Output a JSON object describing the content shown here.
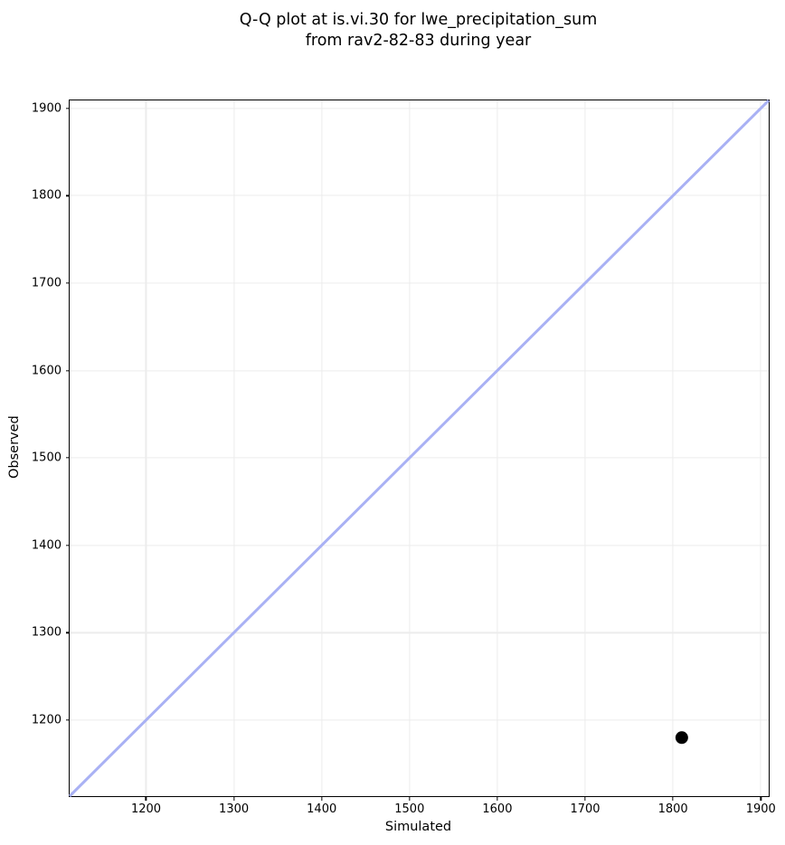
{
  "title": {
    "line1": "Q-Q plot at is.vi.30 for lwe_precipitation_sum",
    "line2": "from rav2-82-83 during year"
  },
  "chart_data": {
    "type": "scatter",
    "title": "Q-Q plot at is.vi.30 for lwe_precipitation_sum\nfrom rav2-82-83 during year",
    "xlabel": "Simulated",
    "ylabel": "Observed",
    "xlim": [
      1113,
      1909
    ],
    "ylim": [
      1113,
      1909
    ],
    "xticks": [
      1200,
      1300,
      1400,
      1500,
      1600,
      1700,
      1800,
      1900
    ],
    "yticks": [
      1200,
      1300,
      1400,
      1500,
      1600,
      1700,
      1800,
      1900
    ],
    "grid": true,
    "legend": "none",
    "identity_line": {
      "x0": 1113,
      "y0": 1113,
      "x1": 1909,
      "y1": 1909,
      "color": "#a9b1f4",
      "width": 3
    },
    "points": [
      {
        "x": 1810,
        "y": 1180,
        "color": "#000000",
        "diameter": 14
      }
    ],
    "colors": {
      "grid": "#ececec",
      "spine": "#000000",
      "background": "#ffffff",
      "marker": "#000000",
      "line": "#a9b1f4"
    }
  }
}
